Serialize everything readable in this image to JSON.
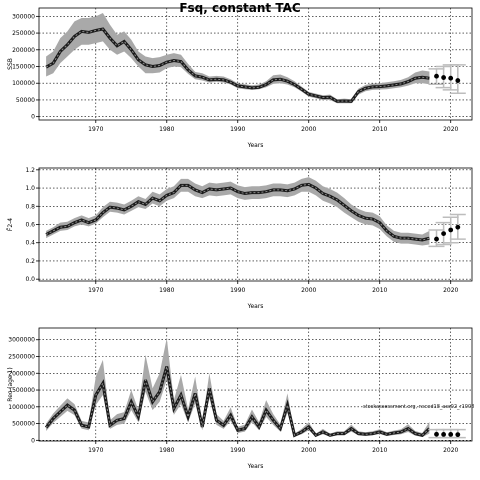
{
  "title": "Fsq, constant TAC",
  "watermark": "stockassessment.org, nscod18_ass02_r1008",
  "chart_data": [
    {
      "type": "line",
      "panel": "ssb",
      "ylabel": "SSB",
      "xlabel": "Years",
      "xlim": [
        1962,
        2023
      ],
      "ylim": [
        -10000,
        325000
      ],
      "xticks": [
        1970,
        1980,
        1990,
        2000,
        2010,
        2020
      ],
      "yticks": [
        0,
        50000,
        100000,
        150000,
        200000,
        250000,
        300000
      ],
      "ytick_labels": [
        "0",
        "50000",
        "100000",
        "150000",
        "200000",
        "250000",
        "300000"
      ],
      "grid": true,
      "years": [
        1963,
        1964,
        1965,
        1966,
        1967,
        1968,
        1969,
        1970,
        1971,
        1972,
        1973,
        1974,
        1975,
        1976,
        1977,
        1978,
        1979,
        1980,
        1981,
        1982,
        1983,
        1984,
        1985,
        1986,
        1987,
        1988,
        1989,
        1990,
        1991,
        1992,
        1993,
        1994,
        1995,
        1996,
        1997,
        1998,
        1999,
        2000,
        2001,
        2002,
        2003,
        2004,
        2005,
        2006,
        2007,
        2008,
        2009,
        2010,
        2011,
        2012,
        2013,
        2014,
        2015,
        2016,
        2017
      ],
      "estimate": [
        148000,
        160000,
        195000,
        215000,
        240000,
        255000,
        252000,
        258000,
        262000,
        235000,
        212000,
        225000,
        200000,
        170000,
        155000,
        150000,
        153000,
        163000,
        168000,
        165000,
        140000,
        122000,
        118000,
        110000,
        112000,
        110000,
        103000,
        92000,
        89000,
        86000,
        88000,
        96000,
        110000,
        112000,
        106000,
        96000,
        82000,
        67000,
        62000,
        57000,
        58000,
        46000,
        47000,
        46000,
        75000,
        85000,
        89000,
        90000,
        92000,
        95000,
        98000,
        105000,
        115000,
        118000,
        115000
      ],
      "lower": [
        120000,
        130000,
        160000,
        180000,
        200000,
        215000,
        215000,
        220000,
        225000,
        200000,
        185000,
        195000,
        175000,
        150000,
        130000,
        130000,
        132000,
        145000,
        150000,
        148000,
        128000,
        112000,
        108000,
        102000,
        104000,
        102000,
        96000,
        85000,
        82000,
        80000,
        82000,
        88000,
        98000,
        100000,
        96000,
        88000,
        75000,
        60000,
        55000,
        50000,
        50000,
        40000,
        40000,
        40000,
        66000,
        76000,
        80000,
        81000,
        82000,
        85000,
        88000,
        93000,
        100000,
        100000,
        97000
      ],
      "upper": [
        180000,
        195000,
        235000,
        255000,
        285000,
        295000,
        295000,
        300000,
        310000,
        275000,
        245000,
        255000,
        230000,
        195000,
        180000,
        175000,
        178000,
        185000,
        190000,
        185000,
        158000,
        134000,
        130000,
        120000,
        122000,
        120000,
        112000,
        100000,
        97000,
        94000,
        96000,
        106000,
        124000,
        126000,
        118000,
        106000,
        90000,
        74000,
        69000,
        64000,
        66000,
        52000,
        54000,
        52000,
        84000,
        95000,
        99000,
        100000,
        103000,
        106000,
        110000,
        118000,
        132000,
        138000,
        135000
      ],
      "forecast_years": [
        2018,
        2019,
        2020,
        2021
      ],
      "forecast_median": [
        121000,
        117000,
        115000,
        108000
      ],
      "forecast_lower": [
        97000,
        87000,
        80000,
        70000
      ],
      "forecast_upper": [
        143000,
        150000,
        155000,
        155000
      ]
    },
    {
      "type": "line",
      "panel": "fbar",
      "ylabel": "F̄2-4",
      "xlabel": "Years",
      "xlim": [
        1962,
        2023
      ],
      "ylim": [
        -0.02,
        1.22
      ],
      "xticks": [
        1970,
        1980,
        1990,
        2000,
        2010,
        2020
      ],
      "yticks": [
        0.0,
        0.2,
        0.4,
        0.6,
        0.8,
        1.0,
        1.2
      ],
      "ytick_labels": [
        "0.0",
        "0.2",
        "0.4",
        "0.6",
        "0.8",
        "1.0",
        "1.2"
      ],
      "grid": true,
      "years": [
        1963,
        1964,
        1965,
        1966,
        1967,
        1968,
        1969,
        1970,
        1971,
        1972,
        1973,
        1974,
        1975,
        1976,
        1977,
        1978,
        1979,
        1980,
        1981,
        1982,
        1983,
        1984,
        1985,
        1986,
        1987,
        1988,
        1989,
        1990,
        1991,
        1992,
        1993,
        1994,
        1995,
        1996,
        1997,
        1998,
        1999,
        2000,
        2001,
        2002,
        2003,
        2004,
        2005,
        2006,
        2007,
        2008,
        2009,
        2010,
        2011,
        2012,
        2013,
        2014,
        2015,
        2016,
        2017
      ],
      "estimate": [
        0.49,
        0.53,
        0.57,
        0.58,
        0.62,
        0.65,
        0.62,
        0.65,
        0.73,
        0.79,
        0.78,
        0.76,
        0.8,
        0.85,
        0.82,
        0.89,
        0.86,
        0.92,
        0.95,
        1.03,
        1.03,
        0.98,
        0.95,
        0.99,
        0.98,
        0.99,
        1.0,
        0.96,
        0.94,
        0.95,
        0.95,
        0.96,
        0.98,
        0.98,
        0.97,
        0.99,
        1.03,
        1.04,
        1.0,
        0.94,
        0.91,
        0.87,
        0.81,
        0.75,
        0.7,
        0.67,
        0.66,
        0.62,
        0.53,
        0.47,
        0.45,
        0.45,
        0.44,
        0.43,
        0.45
      ],
      "lower": [
        0.45,
        0.49,
        0.53,
        0.54,
        0.58,
        0.6,
        0.58,
        0.61,
        0.68,
        0.74,
        0.73,
        0.71,
        0.75,
        0.79,
        0.77,
        0.83,
        0.8,
        0.86,
        0.89,
        0.96,
        0.96,
        0.91,
        0.89,
        0.92,
        0.91,
        0.92,
        0.93,
        0.89,
        0.87,
        0.88,
        0.88,
        0.89,
        0.91,
        0.91,
        0.9,
        0.92,
        0.96,
        0.96,
        0.92,
        0.86,
        0.83,
        0.79,
        0.73,
        0.68,
        0.63,
        0.6,
        0.59,
        0.55,
        0.47,
        0.41,
        0.39,
        0.39,
        0.38,
        0.37,
        0.38
      ],
      "upper": [
        0.53,
        0.57,
        0.62,
        0.63,
        0.67,
        0.7,
        0.67,
        0.7,
        0.79,
        0.85,
        0.84,
        0.82,
        0.86,
        0.91,
        0.88,
        0.96,
        0.93,
        0.99,
        1.02,
        1.1,
        1.1,
        1.05,
        1.02,
        1.06,
        1.05,
        1.06,
        1.07,
        1.03,
        1.01,
        1.02,
        1.02,
        1.03,
        1.05,
        1.05,
        1.04,
        1.06,
        1.1,
        1.12,
        1.08,
        1.02,
        0.99,
        0.95,
        0.89,
        0.82,
        0.77,
        0.74,
        0.73,
        0.69,
        0.59,
        0.53,
        0.51,
        0.51,
        0.5,
        0.49,
        0.53
      ],
      "forecast_years": [
        2018,
        2019,
        2020,
        2021
      ],
      "forecast_median": [
        0.44,
        0.5,
        0.54,
        0.57
      ],
      "forecast_lower": [
        0.36,
        0.38,
        0.4,
        0.44
      ],
      "forecast_upper": [
        0.54,
        0.62,
        0.68,
        0.71
      ]
    },
    {
      "type": "line",
      "panel": "recruitment",
      "ylabel": "Rec (age 1)",
      "xlabel": "Years",
      "xlim": [
        1962,
        2023
      ],
      "ylim": [
        -20000,
        3350000
      ],
      "xticks": [
        1970,
        1980,
        1990,
        2000,
        2010,
        2020
      ],
      "yticks": [
        0,
        500000,
        1000000,
        1500000,
        2000000,
        2500000,
        3000000
      ],
      "ytick_labels": [
        "0",
        "500000",
        "1000000",
        "1500000",
        "2000000",
        "2500000",
        "3000000"
      ],
      "grid": true,
      "years": [
        1963,
        1964,
        1965,
        1966,
        1967,
        1968,
        1969,
        1970,
        1971,
        1972,
        1973,
        1974,
        1975,
        1976,
        1977,
        1978,
        1979,
        1980,
        1981,
        1982,
        1983,
        1984,
        1985,
        1986,
        1987,
        1988,
        1989,
        1990,
        1991,
        1992,
        1993,
        1994,
        1995,
        1996,
        1997,
        1998,
        1999,
        2000,
        2001,
        2002,
        2003,
        2004,
        2005,
        2006,
        2007,
        2008,
        2009,
        2010,
        2011,
        2012,
        2013,
        2014,
        2015,
        2016,
        2017
      ],
      "estimate": [
        380000,
        650000,
        850000,
        1050000,
        900000,
        450000,
        400000,
        1350000,
        1700000,
        450000,
        600000,
        650000,
        1150000,
        700000,
        1800000,
        1150000,
        1450000,
        2200000,
        950000,
        1350000,
        700000,
        1400000,
        400000,
        1550000,
        600000,
        450000,
        750000,
        300000,
        350000,
        700000,
        400000,
        900000,
        600000,
        350000,
        1050000,
        150000,
        250000,
        400000,
        150000,
        250000,
        150000,
        200000,
        200000,
        350000,
        200000,
        180000,
        200000,
        250000,
        180000,
        220000,
        250000,
        350000,
        200000,
        150000,
        350000
      ],
      "lower": [
        280000,
        520000,
        700000,
        880000,
        750000,
        350000,
        300000,
        1050000,
        1350000,
        340000,
        460000,
        500000,
        900000,
        540000,
        1450000,
        900000,
        1150000,
        1800000,
        760000,
        1080000,
        540000,
        1100000,
        300000,
        1250000,
        460000,
        340000,
        580000,
        220000,
        260000,
        540000,
        300000,
        700000,
        460000,
        260000,
        820000,
        110000,
        180000,
        300000,
        110000,
        180000,
        110000,
        150000,
        150000,
        260000,
        150000,
        130000,
        150000,
        190000,
        130000,
        160000,
        180000,
        250000,
        140000,
        100000,
        200000
      ],
      "upper": [
        500000,
        800000,
        1030000,
        1250000,
        1080000,
        580000,
        530000,
        1900000,
        2400000,
        600000,
        780000,
        840000,
        1500000,
        900000,
        2550000,
        1550000,
        2000000,
        3050000,
        1200000,
        1950000,
        930000,
        1900000,
        540000,
        2000000,
        780000,
        580000,
        980000,
        400000,
        470000,
        920000,
        540000,
        1200000,
        780000,
        470000,
        1400000,
        200000,
        340000,
        540000,
        200000,
        340000,
        200000,
        270000,
        270000,
        470000,
        270000,
        240000,
        270000,
        330000,
        240000,
        290000,
        330000,
        480000,
        280000,
        220000,
        550000
      ],
      "forecast_years": [
        2018,
        2019,
        2020,
        2021
      ],
      "forecast_median": [
        180000,
        175000,
        175000,
        170000
      ],
      "forecast_lower": [
        80000,
        80000,
        80000,
        80000
      ],
      "forecast_upper": [
        320000,
        320000,
        320000,
        320000
      ]
    }
  ]
}
